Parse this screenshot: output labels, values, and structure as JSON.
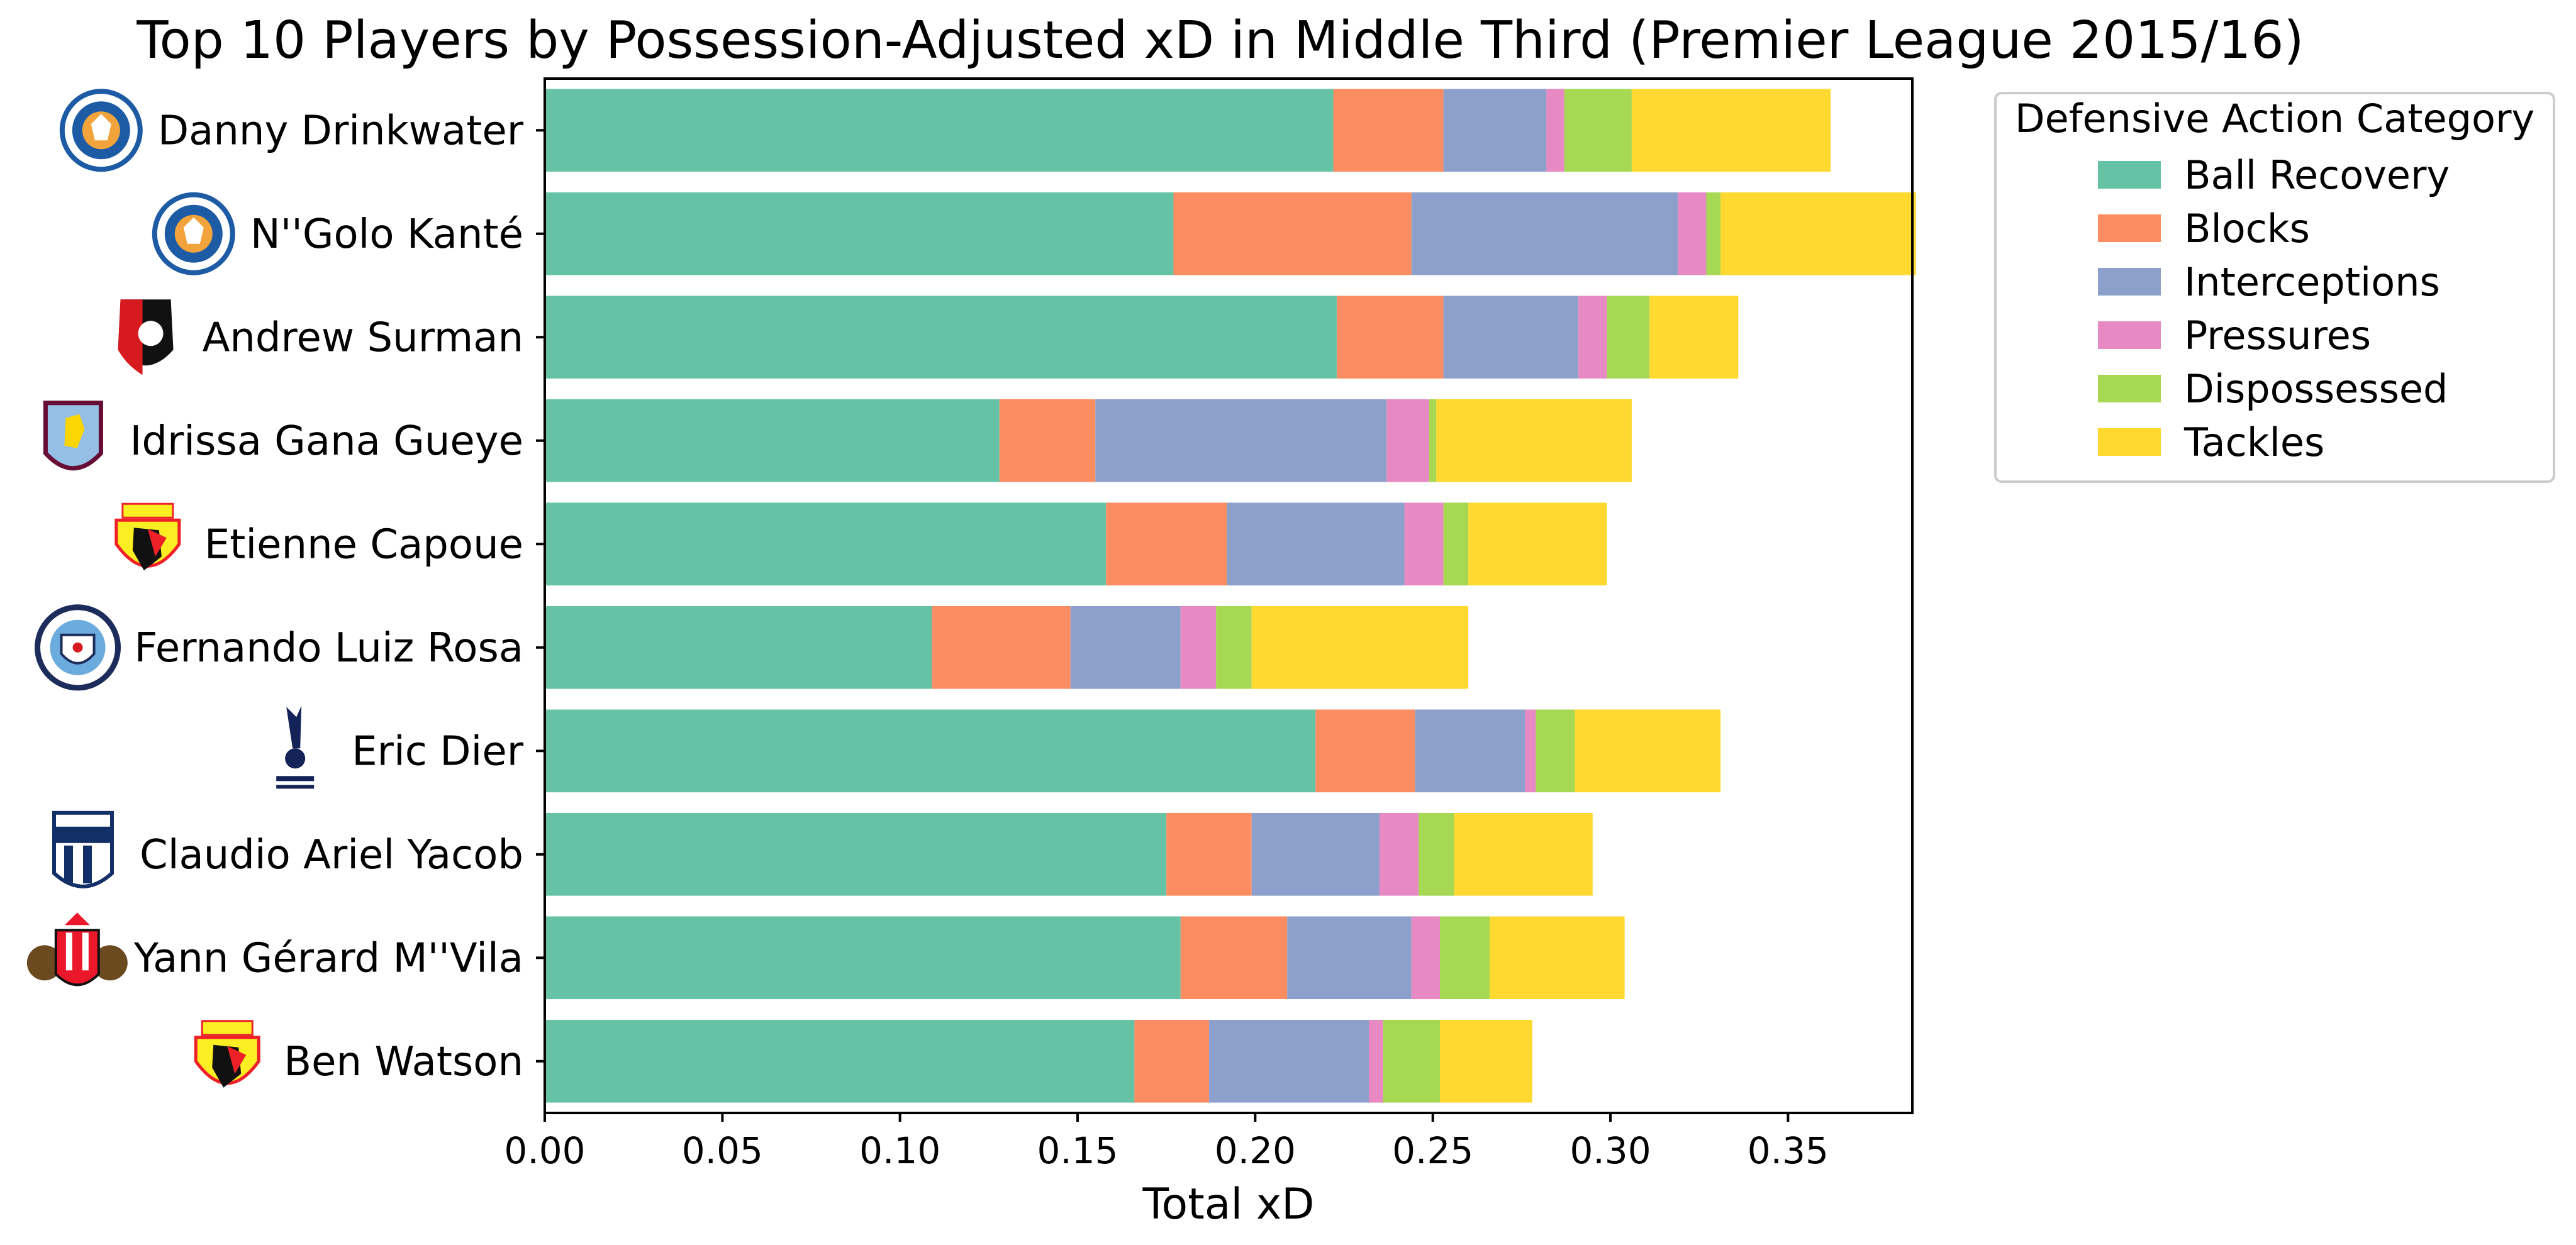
{
  "chart_data": {
    "type": "bar",
    "orientation": "horizontal",
    "stacked": true,
    "title": "Top 10 Players by Possession-Adjusted xD in Middle Third (Premier League 2015/16)",
    "xlabel": "Total xD",
    "ylabel": "",
    "xlim": [
      0,
      0.385
    ],
    "xticks": [
      "0.00",
      "0.05",
      "0.10",
      "0.15",
      "0.20",
      "0.25",
      "0.30",
      "0.35"
    ],
    "grid": false,
    "legend": {
      "title": "Defensive Action Category",
      "placement": "outside-top-right"
    },
    "categories": [
      "Danny Drinkwater",
      "N''Golo Kanté",
      "Andrew Surman",
      "Idrissa Gana Gueye",
      "Etienne Capoue",
      "Fernando Luiz Rosa",
      "Eric Dier",
      "Claudio Ariel Yacob",
      "Yann Gérard M''Vila",
      "Ben Watson"
    ],
    "team_badges": [
      "leicester-city",
      "leicester-city",
      "afc-bournemouth",
      "aston-villa",
      "watford",
      "manchester-city",
      "tottenham-hotspur",
      "west-bromwich-albion",
      "sunderland",
      "watford"
    ],
    "series": [
      {
        "name": "Ball Recovery",
        "color": "#66c2a5",
        "values": [
          0.222,
          0.177,
          0.223,
          0.128,
          0.158,
          0.109,
          0.217,
          0.175,
          0.179,
          0.166
        ]
      },
      {
        "name": "Blocks",
        "color": "#fc8d62",
        "values": [
          0.031,
          0.067,
          0.03,
          0.027,
          0.034,
          0.039,
          0.028,
          0.024,
          0.03,
          0.021
        ]
      },
      {
        "name": "Interceptions",
        "color": "#8da0cb",
        "values": [
          0.029,
          0.075,
          0.038,
          0.082,
          0.05,
          0.031,
          0.031,
          0.036,
          0.035,
          0.045
        ]
      },
      {
        "name": "Pressures",
        "color": "#e78ac3",
        "values": [
          0.005,
          0.008,
          0.008,
          0.012,
          0.011,
          0.01,
          0.003,
          0.011,
          0.008,
          0.004
        ]
      },
      {
        "name": "Dispossessed",
        "color": "#a6d854",
        "values": [
          0.019,
          0.004,
          0.012,
          0.002,
          0.007,
          0.01,
          0.011,
          0.01,
          0.014,
          0.016
        ]
      },
      {
        "name": "Tackles",
        "color": "#ffd92f",
        "values": [
          0.056,
          0.055,
          0.025,
          0.055,
          0.039,
          0.061,
          0.041,
          0.039,
          0.038,
          0.026
        ]
      }
    ]
  }
}
